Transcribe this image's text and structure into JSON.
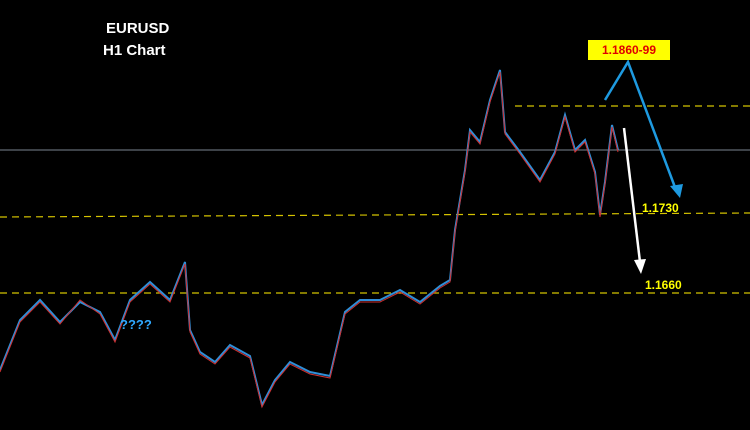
{
  "title": "EURUSD",
  "subtitle": "H1 Chart",
  "target_label": "1.1860-99",
  "level_1": "1.1730",
  "level_2": "1.1660",
  "question": "????"
}
